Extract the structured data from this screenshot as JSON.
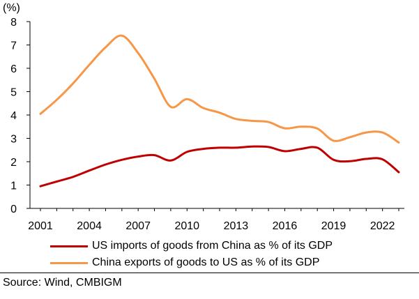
{
  "chart_data": {
    "type": "line",
    "unit_label": "(%)",
    "ylim": [
      0,
      8
    ],
    "yticks": [
      0,
      1,
      2,
      3,
      4,
      5,
      6,
      7,
      8
    ],
    "xlim": [
      2001,
      2023
    ],
    "xticks": [
      2001,
      2004,
      2007,
      2010,
      2013,
      2016,
      2019,
      2022
    ],
    "grid": false,
    "legend_position": "bottom",
    "x": [
      2001,
      2002,
      2003,
      2004,
      2005,
      2006,
      2007,
      2008,
      2009,
      2010,
      2011,
      2012,
      2013,
      2014,
      2015,
      2016,
      2017,
      2018,
      2019,
      2020,
      2021,
      2022,
      2023
    ],
    "series": [
      {
        "name": "US imports of goods from China as % of its GDP",
        "color": "#c00000",
        "values": [
          0.95,
          1.15,
          1.35,
          1.62,
          1.88,
          2.08,
          2.22,
          2.28,
          2.05,
          2.42,
          2.55,
          2.6,
          2.6,
          2.65,
          2.63,
          2.45,
          2.55,
          2.6,
          2.08,
          2.02,
          2.12,
          2.1,
          1.55
        ]
      },
      {
        "name": "China exports of goods to US as % of its GDP",
        "color": "#f79646",
        "values": [
          4.05,
          4.65,
          5.35,
          6.15,
          6.9,
          7.4,
          6.65,
          5.55,
          4.35,
          4.68,
          4.3,
          4.1,
          3.83,
          3.75,
          3.7,
          3.43,
          3.5,
          3.42,
          2.9,
          3.05,
          3.25,
          3.25,
          2.82
        ]
      }
    ]
  },
  "source": "Source: Wind, CMBIGM"
}
